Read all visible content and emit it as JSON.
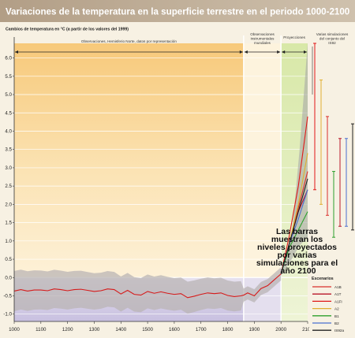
{
  "header": {
    "title": "Variaciones de la temperatura en la superficie terrestre en el periodo 1000-2100"
  },
  "chart_data": {
    "type": "line",
    "title": "Variaciones de la temperatura en la superficie terrestre en el periodo 1000-2100",
    "ylabel": "Cambios de temperatura en °C (a partir de los valores del 1999)",
    "xlim": [
      1000,
      2100
    ],
    "ylim": [
      -1.2,
      6.4
    ],
    "xticks": [
      "1000",
      "1100",
      "1200",
      "1300",
      "1400",
      "1500",
      "1600",
      "1700",
      "1800",
      "1900",
      "2000",
      "2100"
    ],
    "yticks": [
      "-1.0",
      "-0.5",
      "0.0",
      "0.5",
      "1.0",
      "1.5",
      "2.0",
      "2.5",
      "3.0",
      "3.5",
      "4.0",
      "4.5",
      "5.0",
      "5.5",
      "6.0"
    ],
    "regions": [
      {
        "label": "Observaciones, Hemisferio Norte, datos por representación",
        "from": 1000,
        "to": 1860
      },
      {
        "label": "Observaciones instrumentales mundiales",
        "from": 1860,
        "to": 2000
      },
      {
        "label": "Proyecciones",
        "from": 2000,
        "to": 2100
      },
      {
        "label": "Varias simulaciones del conjunto del IS92",
        "from": 2100,
        "to": 2190
      }
    ],
    "reconstruction": {
      "x": [
        1000,
        1025,
        1050,
        1075,
        1100,
        1125,
        1150,
        1175,
        1200,
        1225,
        1250,
        1275,
        1300,
        1325,
        1350,
        1375,
        1400,
        1425,
        1450,
        1475,
        1500,
        1525,
        1550,
        1575,
        1600,
        1625,
        1650,
        1675,
        1700,
        1725,
        1750,
        1775,
        1800,
        1825,
        1850,
        1860,
        1875,
        1900,
        1925,
        1950,
        1975,
        2000
      ],
      "y": [
        -0.37,
        -0.33,
        -0.37,
        -0.34,
        -0.34,
        -0.36,
        -0.31,
        -0.33,
        -0.36,
        -0.33,
        -0.32,
        -0.35,
        -0.38,
        -0.36,
        -0.31,
        -0.33,
        -0.45,
        -0.35,
        -0.46,
        -0.48,
        -0.38,
        -0.43,
        -0.39,
        -0.43,
        -0.46,
        -0.44,
        -0.55,
        -0.51,
        -0.46,
        -0.42,
        -0.44,
        -0.42,
        -0.49,
        -0.52,
        -0.5,
        -0.48,
        -0.42,
        -0.5,
        -0.3,
        -0.22,
        -0.06,
        0.1
      ],
      "color": "#d61a1a"
    },
    "series": [
      {
        "name": "A1B",
        "color": "#d9302c",
        "values": [
          0.1,
          0.9,
          1.9,
          2.9
        ]
      },
      {
        "name": "A1T",
        "color": "#b8162a",
        "values": [
          0.1,
          0.9,
          1.8,
          2.4
        ]
      },
      {
        "name": "A1FI",
        "color": "#e01818",
        "values": [
          0.1,
          1.1,
          2.5,
          4.4
        ]
      },
      {
        "name": "A2",
        "color": "#e0b030",
        "values": [
          0.1,
          0.9,
          2.0,
          3.4
        ]
      },
      {
        "name": "B1",
        "color": "#2ca02c",
        "values": [
          0.1,
          0.8,
          1.3,
          1.8
        ]
      },
      {
        "name": "B2",
        "color": "#4a6fd0",
        "values": [
          0.1,
          0.9,
          1.6,
          2.4
        ]
      },
      {
        "name": "IS92a",
        "color": "#222222",
        "values": [
          0.1,
          0.9,
          1.8,
          2.7
        ]
      }
    ],
    "series_x": [
      2000,
      2030,
      2065,
      2100
    ],
    "range_bars": [
      {
        "name": "A1B",
        "low": 1.7,
        "high": 4.4
      },
      {
        "name": "A1T",
        "low": 1.4,
        "high": 3.8
      },
      {
        "name": "A1FI",
        "low": 2.4,
        "high": 6.4
      },
      {
        "name": "A2",
        "low": 2.0,
        "high": 5.4
      },
      {
        "name": "B1",
        "low": 1.1,
        "high": 2.9
      },
      {
        "name": "B2",
        "low": 1.4,
        "high": 3.8
      },
      {
        "name": "IS92a",
        "low": 1.3,
        "high": 4.2
      }
    ],
    "legend": {
      "title": "Escenarios",
      "position": "bottom-right"
    },
    "annotation": "Las barras muestran los niveles proyectados por varias simulaciones para el año 2100"
  }
}
